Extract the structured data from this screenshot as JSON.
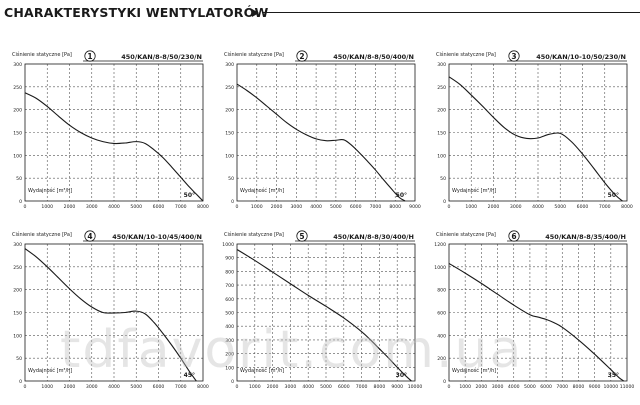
{
  "page": {
    "title": "CHARAKTERYSTYKI WENTYLATORÓW",
    "watermark": "tdfavorit.com.ua"
  },
  "chart_data": [
    {
      "type": "line",
      "number": "1",
      "model": "450/KAN/8-8/50/230/N",
      "ylabel": "Ciśnienie statyczne [Pa]",
      "xlabel": "Wydajność [m³/h]",
      "annotation": "50°",
      "xlim": [
        0,
        8000
      ],
      "ylim": [
        0,
        300
      ],
      "xticks": [
        0,
        1000,
        2000,
        3000,
        4000,
        5000,
        6000,
        7000,
        8000
      ],
      "yticks": [
        0,
        50,
        100,
        150,
        200,
        250,
        300
      ],
      "grid": true,
      "series": [
        {
          "x": [
            0,
            500,
            1000,
            1500,
            2000,
            2500,
            3000,
            3500,
            4000,
            4500,
            5000,
            5400,
            5800,
            6200,
            6600,
            7000,
            7400,
            7700,
            8000
          ],
          "y": [
            237,
            225,
            207,
            186,
            166,
            150,
            138,
            130,
            126,
            127,
            130,
            126,
            112,
            95,
            74,
            52,
            30,
            15,
            0
          ]
        }
      ]
    },
    {
      "type": "line",
      "number": "2",
      "model": "450/KAN/8-8/50/400/N",
      "ylabel": "Ciśnienie statyczne [Pa]",
      "xlabel": "Wydajność [m³/h]",
      "annotation": "50°",
      "xlim": [
        0,
        9000
      ],
      "ylim": [
        0,
        300
      ],
      "xticks": [
        0,
        1000,
        2000,
        3000,
        4000,
        5000,
        6000,
        7000,
        8000,
        9000
      ],
      "yticks": [
        0,
        50,
        100,
        150,
        200,
        250,
        300
      ],
      "grid": true,
      "series": [
        {
          "x": [
            0,
            500,
            1000,
            1500,
            2000,
            2500,
            3000,
            3500,
            4000,
            4500,
            5000,
            5400,
            5800,
            6200,
            6600,
            7000,
            7400,
            7800,
            8200,
            8500
          ],
          "y": [
            256,
            242,
            226,
            208,
            190,
            172,
            157,
            145,
            136,
            132,
            133,
            134,
            122,
            105,
            87,
            68,
            47,
            27,
            8,
            0
          ]
        }
      ]
    },
    {
      "type": "line",
      "number": "3",
      "model": "450/KAN/10-10/50/230/N",
      "ylabel": "Ciśnienie statyczne [Pa]",
      "xlabel": "Wydajność [m³/h]",
      "annotation": "50°",
      "xlim": [
        0,
        8000
      ],
      "ylim": [
        0,
        300
      ],
      "xticks": [
        0,
        1000,
        2000,
        3000,
        4000,
        5000,
        6000,
        7000,
        8000
      ],
      "yticks": [
        0,
        50,
        100,
        150,
        200,
        250,
        300
      ],
      "grid": true,
      "series": [
        {
          "x": [
            0,
            500,
            1000,
            1500,
            2000,
            2500,
            3000,
            3500,
            4000,
            4500,
            5000,
            5500,
            6000,
            6500,
            7000,
            7500,
            7800
          ],
          "y": [
            272,
            255,
            232,
            208,
            183,
            160,
            144,
            137,
            138,
            146,
            148,
            130,
            103,
            72,
            40,
            12,
            0
          ]
        }
      ]
    },
    {
      "type": "line",
      "number": "4",
      "model": "450/KAN/10-10/45/400/N",
      "ylabel": "Ciśnienie statyczne [Pa]",
      "xlabel": "Wydajność [m³/h]",
      "annotation": "45°",
      "xlim": [
        0,
        8000
      ],
      "ylim": [
        0,
        300
      ],
      "xticks": [
        0,
        1000,
        2000,
        3000,
        4000,
        5000,
        6000,
        7000,
        8000
      ],
      "yticks": [
        0,
        50,
        100,
        150,
        200,
        250,
        300
      ],
      "grid": true,
      "series": [
        {
          "x": [
            0,
            500,
            1000,
            1500,
            2000,
            2500,
            3000,
            3500,
            4000,
            4500,
            5000,
            5400,
            5800,
            6200,
            6600,
            7000,
            7400,
            7700
          ],
          "y": [
            290,
            272,
            250,
            226,
            202,
            180,
            162,
            150,
            149,
            150,
            153,
            147,
            128,
            104,
            78,
            50,
            20,
            0
          ]
        }
      ]
    },
    {
      "type": "line",
      "number": "5",
      "model": "450/KAN/8-8/30/400/H",
      "ylabel": "Ciśnienie statyczne [Pa]",
      "xlabel": "Wydajność [m³/h]",
      "annotation": "30°",
      "xlim": [
        0,
        10000
      ],
      "ylim": [
        0,
        1000
      ],
      "xticks": [
        0,
        1000,
        2000,
        3000,
        4000,
        5000,
        6000,
        7000,
        8000,
        9000,
        10000
      ],
      "yticks": [
        0,
        100,
        200,
        300,
        400,
        500,
        600,
        700,
        800,
        900,
        1000
      ],
      "grid": true,
      "series": [
        {
          "x": [
            0,
            1000,
            2000,
            3000,
            4000,
            5000,
            6000,
            7000,
            7500,
            8000,
            8500,
            9000,
            9500,
            9800
          ],
          "y": [
            960,
            880,
            795,
            710,
            625,
            545,
            460,
            360,
            300,
            235,
            170,
            100,
            35,
            0
          ]
        }
      ]
    },
    {
      "type": "line",
      "number": "6",
      "model": "450/KAN/8-8/35/400/H",
      "ylabel": "Ciśnienie statyczne [Pa]",
      "xlabel": "Wydajność [m³/h]",
      "annotation": "35°",
      "xlim": [
        0,
        11000
      ],
      "ylim": [
        0,
        1200
      ],
      "xticks": [
        0,
        1000,
        2000,
        3000,
        4000,
        5000,
        6000,
        7000,
        8000,
        9000,
        10000,
        11000
      ],
      "yticks": [
        0,
        200,
        400,
        600,
        800,
        1000,
        1200
      ],
      "grid": true,
      "series": [
        {
          "x": [
            0,
            1000,
            2000,
            3000,
            4000,
            5000,
            5500,
            6000,
            6500,
            7000,
            8000,
            9000,
            10000,
            10500,
            10800
          ],
          "y": [
            1030,
            945,
            855,
            760,
            665,
            580,
            560,
            540,
            510,
            470,
            360,
            235,
            100,
            30,
            0
          ]
        }
      ]
    }
  ]
}
